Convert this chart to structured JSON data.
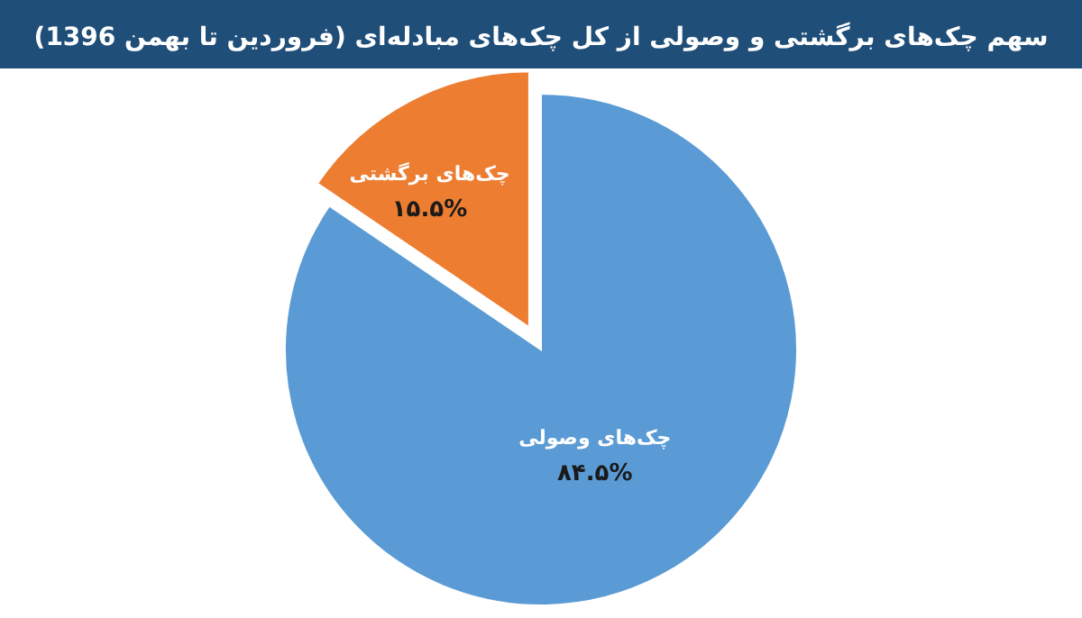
{
  "chart_data": {
    "type": "pie",
    "title": "سهم  چک‌های برگشتی و وصولی از کل چک‌های مبادله‌ای (فروردین تا بهمن 1396)",
    "categories": [
      "چک‌های وصولی",
      "چک‌های برگشتی"
    ],
    "values": [
      84.5,
      15.5
    ],
    "colors": [
      "#5b9bd5",
      "#ed7d31"
    ],
    "value_labels": [
      "۸۴.۵%",
      "۱۵.۵%"
    ]
  }
}
